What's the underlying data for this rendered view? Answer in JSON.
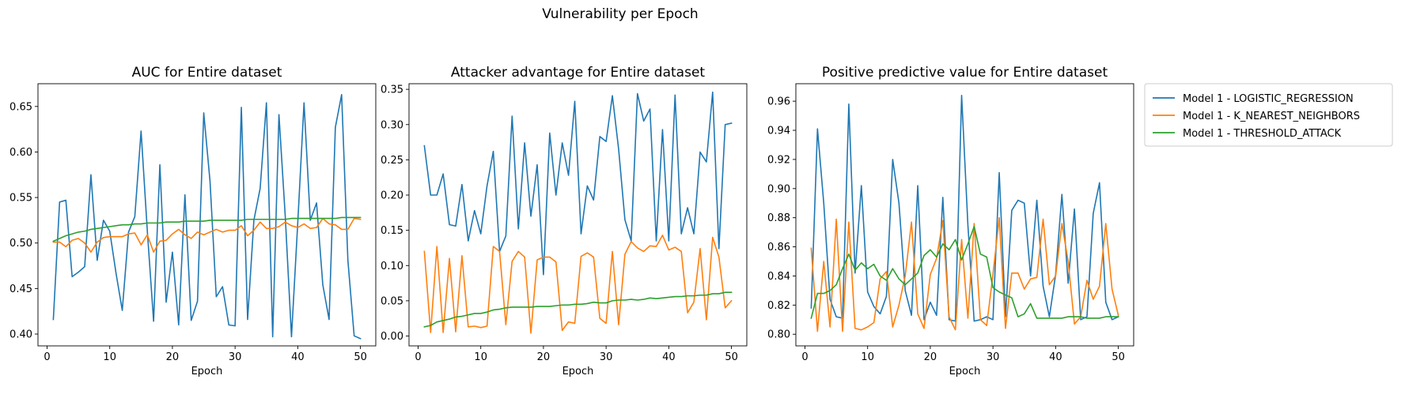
{
  "figure": {
    "title": "Vulnerability per Epoch"
  },
  "legend": {
    "placement": "outside-right",
    "entries": [
      {
        "label": "Model 1 - LOGISTIC_REGRESSION",
        "color": "#1f77b4"
      },
      {
        "label": "Model 1 - K_NEAREST_NEIGHBORS",
        "color": "#ff7f0e"
      },
      {
        "label": "Model 1 - THRESHOLD_ATTACK",
        "color": "#2ca02c"
      }
    ]
  },
  "chart_data": [
    {
      "type": "line",
      "title": "AUC for Entire dataset",
      "xlabel": "Epoch",
      "ylabel": "",
      "xlim": [
        -1.45,
        52.45
      ],
      "ylim": [
        0.387,
        0.675
      ],
      "xticks": [
        0,
        10,
        20,
        30,
        40,
        50
      ],
      "yticks": [
        0.4,
        0.45,
        0.5,
        0.55,
        0.6,
        0.65
      ],
      "ytick_labels": [
        "0.40",
        "0.45",
        "0.50",
        "0.55",
        "0.60",
        "0.65"
      ],
      "grid": false,
      "x": [
        1,
        2,
        3,
        4,
        5,
        6,
        7,
        8,
        9,
        10,
        11,
        12,
        13,
        14,
        15,
        16,
        17,
        18,
        19,
        20,
        21,
        22,
        23,
        24,
        25,
        26,
        27,
        28,
        29,
        30,
        31,
        32,
        33,
        34,
        35,
        36,
        37,
        38,
        39,
        40,
        41,
        42,
        43,
        44,
        45,
        46,
        47,
        48,
        49,
        50
      ],
      "series": [
        {
          "name": "Model 1 - LOGISTIC_REGRESSION",
          "color": "#1f77b4",
          "values": [
            0.416,
            0.545,
            0.547,
            0.463,
            0.468,
            0.474,
            0.575,
            0.481,
            0.525,
            0.513,
            0.467,
            0.426,
            0.512,
            0.529,
            0.623,
            0.513,
            0.414,
            0.586,
            0.435,
            0.49,
            0.41,
            0.553,
            0.415,
            0.436,
            0.643,
            0.568,
            0.441,
            0.452,
            0.41,
            0.409,
            0.649,
            0.416,
            0.525,
            0.56,
            0.654,
            0.397,
            0.641,
            0.53,
            0.397,
            0.522,
            0.654,
            0.525,
            0.544,
            0.454,
            0.416,
            0.627,
            0.663,
            0.481,
            0.398,
            0.395
          ]
        },
        {
          "name": "Model 1 - K_NEAREST_NEIGHBORS",
          "color": "#ff7f0e",
          "values": [
            0.501,
            0.501,
            0.496,
            0.503,
            0.505,
            0.5,
            0.49,
            0.501,
            0.506,
            0.507,
            0.507,
            0.507,
            0.51,
            0.511,
            0.498,
            0.509,
            0.49,
            0.502,
            0.503,
            0.51,
            0.515,
            0.509,
            0.505,
            0.512,
            0.509,
            0.512,
            0.515,
            0.512,
            0.514,
            0.514,
            0.519,
            0.508,
            0.514,
            0.523,
            0.516,
            0.516,
            0.518,
            0.523,
            0.519,
            0.517,
            0.521,
            0.516,
            0.517,
            0.527,
            0.521,
            0.52,
            0.515,
            0.515,
            0.527,
            0.526
          ]
        },
        {
          "name": "Model 1 - THRESHOLD_ATTACK",
          "color": "#2ca02c",
          "values": [
            0.502,
            0.505,
            0.508,
            0.51,
            0.512,
            0.513,
            0.515,
            0.516,
            0.517,
            0.518,
            0.519,
            0.52,
            0.52,
            0.521,
            0.521,
            0.522,
            0.522,
            0.522,
            0.523,
            0.523,
            0.523,
            0.524,
            0.524,
            0.524,
            0.524,
            0.525,
            0.525,
            0.525,
            0.525,
            0.525,
            0.525,
            0.526,
            0.526,
            0.526,
            0.526,
            0.526,
            0.526,
            0.526,
            0.527,
            0.527,
            0.527,
            0.527,
            0.527,
            0.527,
            0.527,
            0.527,
            0.528,
            0.528,
            0.528,
            0.528
          ]
        }
      ]
    },
    {
      "type": "line",
      "title": "Attacker advantage for Entire dataset",
      "xlabel": "Epoch",
      "ylabel": "",
      "xlim": [
        -1.45,
        52.45
      ],
      "ylim": [
        -0.014,
        0.358
      ],
      "xticks": [
        0,
        10,
        20,
        30,
        40,
        50
      ],
      "yticks": [
        0.0,
        0.05,
        0.1,
        0.15,
        0.2,
        0.25,
        0.3,
        0.35
      ],
      "ytick_labels": [
        "0.00",
        "0.05",
        "0.10",
        "0.15",
        "0.20",
        "0.25",
        "0.30",
        "0.35"
      ],
      "grid": false,
      "x": [
        1,
        2,
        3,
        4,
        5,
        6,
        7,
        8,
        9,
        10,
        11,
        12,
        13,
        14,
        15,
        16,
        17,
        18,
        19,
        20,
        21,
        22,
        23,
        24,
        25,
        26,
        27,
        28,
        29,
        30,
        31,
        32,
        33,
        34,
        35,
        36,
        37,
        38,
        39,
        40,
        41,
        42,
        43,
        44,
        45,
        46,
        47,
        48,
        49,
        50
      ],
      "series": [
        {
          "name": "Model 1 - LOGISTIC_REGRESSION",
          "color": "#1f77b4",
          "values": [
            0.27,
            0.2,
            0.2,
            0.23,
            0.158,
            0.156,
            0.215,
            0.135,
            0.178,
            0.145,
            0.213,
            0.262,
            0.12,
            0.142,
            0.312,
            0.152,
            0.274,
            0.17,
            0.243,
            0.087,
            0.288,
            0.2,
            0.274,
            0.228,
            0.333,
            0.145,
            0.213,
            0.193,
            0.283,
            0.276,
            0.341,
            0.265,
            0.165,
            0.135,
            0.344,
            0.305,
            0.322,
            0.135,
            0.293,
            0.135,
            0.342,
            0.145,
            0.182,
            0.145,
            0.261,
            0.247,
            0.346,
            0.124,
            0.3,
            0.302
          ]
        },
        {
          "name": "Model 1 - K_NEAREST_NEIGHBORS",
          "color": "#ff7f0e",
          "values": [
            0.12,
            0.005,
            0.127,
            0.005,
            0.11,
            0.006,
            0.114,
            0.013,
            0.014,
            0.012,
            0.014,
            0.127,
            0.12,
            0.016,
            0.106,
            0.12,
            0.112,
            0.004,
            0.108,
            0.112,
            0.112,
            0.105,
            0.008,
            0.02,
            0.018,
            0.113,
            0.118,
            0.112,
            0.025,
            0.018,
            0.12,
            0.016,
            0.116,
            0.134,
            0.125,
            0.12,
            0.128,
            0.127,
            0.143,
            0.122,
            0.126,
            0.12,
            0.033,
            0.048,
            0.124,
            0.023,
            0.14,
            0.112,
            0.04,
            0.05
          ]
        },
        {
          "name": "Model 1 - THRESHOLD_ATTACK",
          "color": "#2ca02c",
          "values": [
            0.013,
            0.015,
            0.02,
            0.022,
            0.024,
            0.027,
            0.028,
            0.03,
            0.032,
            0.032,
            0.034,
            0.037,
            0.038,
            0.04,
            0.041,
            0.041,
            0.041,
            0.041,
            0.042,
            0.042,
            0.042,
            0.043,
            0.044,
            0.044,
            0.045,
            0.045,
            0.046,
            0.048,
            0.047,
            0.047,
            0.05,
            0.051,
            0.051,
            0.052,
            0.051,
            0.052,
            0.054,
            0.053,
            0.054,
            0.055,
            0.056,
            0.056,
            0.057,
            0.057,
            0.058,
            0.058,
            0.06,
            0.06,
            0.062,
            0.062
          ]
        }
      ]
    },
    {
      "type": "line",
      "title": "Positive predictive value for Entire dataset",
      "xlabel": "Epoch",
      "ylabel": "",
      "xlim": [
        -1.45,
        52.45
      ],
      "ylim": [
        0.792,
        0.972
      ],
      "xticks": [
        0,
        10,
        20,
        30,
        40,
        50
      ],
      "yticks": [
        0.8,
        0.82,
        0.84,
        0.86,
        0.88,
        0.9,
        0.92,
        0.94,
        0.96
      ],
      "ytick_labels": [
        "0.80",
        "0.82",
        "0.84",
        "0.86",
        "0.88",
        "0.90",
        "0.92",
        "0.94",
        "0.96"
      ],
      "grid": false,
      "x": [
        1,
        2,
        3,
        4,
        5,
        6,
        7,
        8,
        9,
        10,
        11,
        12,
        13,
        14,
        15,
        16,
        17,
        18,
        19,
        20,
        21,
        22,
        23,
        24,
        25,
        26,
        27,
        28,
        29,
        30,
        31,
        32,
        33,
        34,
        35,
        36,
        37,
        38,
        39,
        40,
        41,
        42,
        43,
        44,
        45,
        46,
        47,
        48,
        49,
        50
      ],
      "series": [
        {
          "name": "Model 1 - LOGISTIC_REGRESSION",
          "color": "#1f77b4",
          "values": [
            0.818,
            0.941,
            0.89,
            0.824,
            0.812,
            0.811,
            0.958,
            0.842,
            0.902,
            0.829,
            0.819,
            0.814,
            0.826,
            0.92,
            0.89,
            0.83,
            0.813,
            0.902,
            0.81,
            0.822,
            0.813,
            0.894,
            0.81,
            0.809,
            0.964,
            0.875,
            0.809,
            0.81,
            0.812,
            0.81,
            0.911,
            0.812,
            0.885,
            0.892,
            0.89,
            0.84,
            0.892,
            0.833,
            0.812,
            0.841,
            0.896,
            0.835,
            0.886,
            0.81,
            0.812,
            0.883,
            0.904,
            0.822,
            0.81,
            0.812
          ]
        },
        {
          "name": "Model 1 - K_NEAREST_NEIGHBORS",
          "color": "#ff7f0e",
          "values": [
            0.859,
            0.802,
            0.85,
            0.805,
            0.879,
            0.802,
            0.877,
            0.804,
            0.803,
            0.805,
            0.808,
            0.838,
            0.843,
            0.805,
            0.82,
            0.84,
            0.877,
            0.814,
            0.804,
            0.841,
            0.852,
            0.878,
            0.812,
            0.803,
            0.865,
            0.811,
            0.876,
            0.81,
            0.806,
            0.841,
            0.88,
            0.804,
            0.842,
            0.842,
            0.831,
            0.838,
            0.839,
            0.879,
            0.834,
            0.84,
            0.876,
            0.85,
            0.807,
            0.812,
            0.837,
            0.824,
            0.833,
            0.876,
            0.831,
            0.813
          ]
        },
        {
          "name": "Model 1 - THRESHOLD_ATTACK",
          "color": "#2ca02c",
          "values": [
            0.811,
            0.828,
            0.828,
            0.83,
            0.834,
            0.845,
            0.855,
            0.844,
            0.849,
            0.845,
            0.848,
            0.84,
            0.837,
            0.845,
            0.838,
            0.834,
            0.838,
            0.842,
            0.854,
            0.858,
            0.853,
            0.862,
            0.858,
            0.865,
            0.851,
            0.862,
            0.874,
            0.855,
            0.853,
            0.832,
            0.829,
            0.827,
            0.825,
            0.812,
            0.814,
            0.821,
            0.811,
            0.811,
            0.811,
            0.811,
            0.811,
            0.812,
            0.812,
            0.812,
            0.811,
            0.811,
            0.811,
            0.812,
            0.812,
            0.812
          ]
        }
      ]
    }
  ]
}
